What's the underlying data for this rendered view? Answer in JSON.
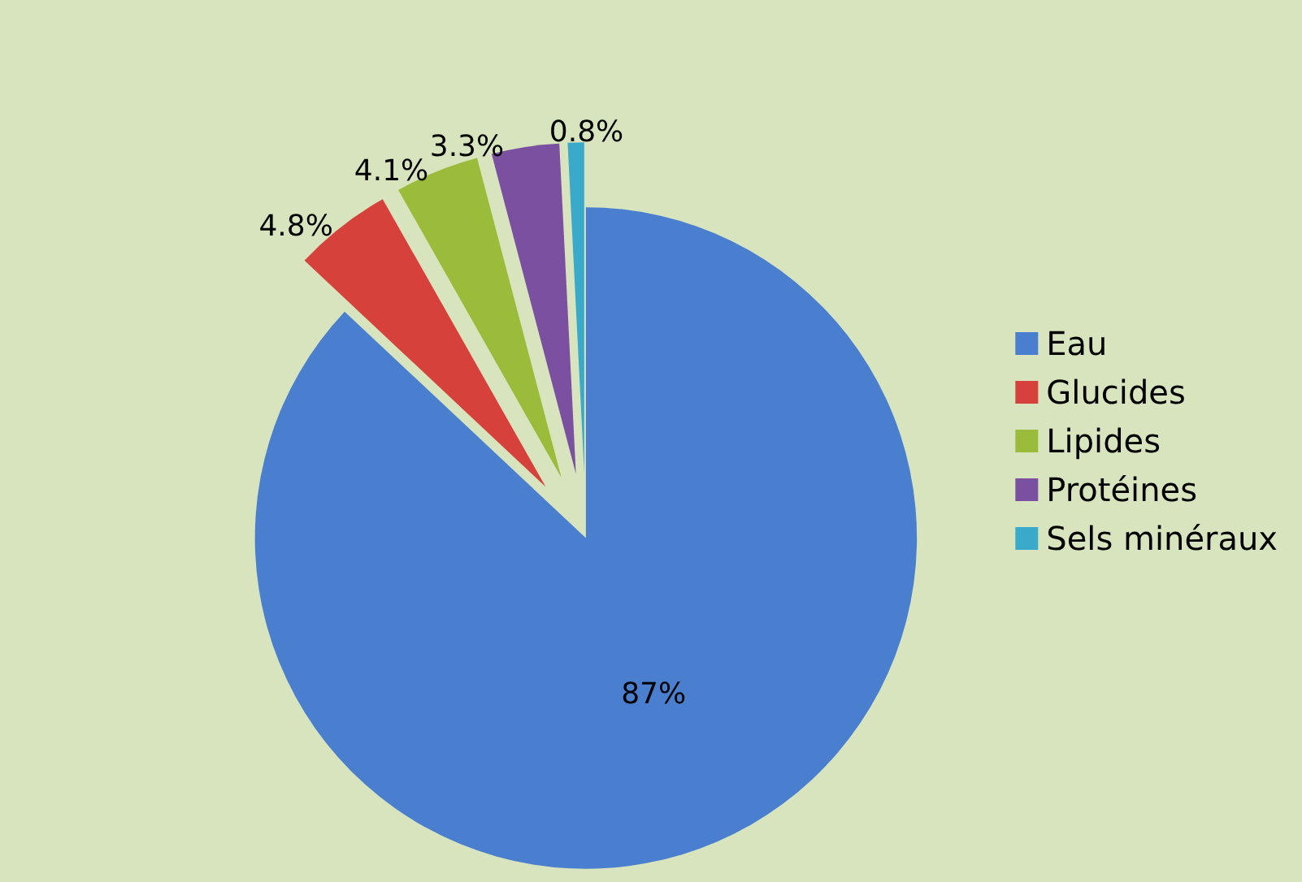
{
  "chart_data": {
    "type": "pie",
    "categories": [
      "Eau",
      "Glucides",
      "Lipides",
      "Protéines",
      "Sels minéraux"
    ],
    "values": [
      87,
      4.8,
      4.1,
      3.3,
      0.8
    ],
    "value_labels": [
      "87%",
      "4.8%",
      "4.1%",
      "3.3%",
      "0.8%"
    ],
    "colors": [
      "#4a7fcf",
      "#d7413b",
      "#9bbb3b",
      "#7b50a0",
      "#3aaacb"
    ],
    "legend": "right"
  }
}
